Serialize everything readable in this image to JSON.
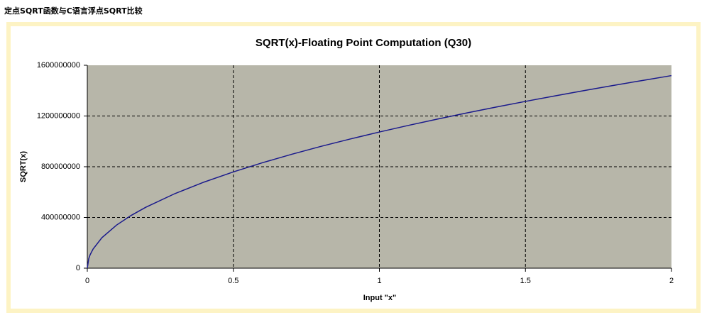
{
  "caption": "定点SQRT函数与C语言浮点SQRT比较",
  "chart_data": {
    "type": "line",
    "title": "SQRT(x)-Floating Point Computation (Q30)",
    "x_label": "Input \"x\"",
    "y_label": "SQRT(x)",
    "x": [
      0,
      0.005,
      0.01,
      0.02,
      0.05,
      0.1,
      0.15,
      0.2,
      0.3,
      0.4,
      0.5,
      0.6,
      0.7,
      0.8,
      0.9,
      1.0,
      1.1,
      1.2,
      1.3,
      1.4,
      1.5,
      1.6,
      1.7,
      1.8,
      1.9,
      2.0
    ],
    "values": [
      0,
      75900000,
      107400000,
      151800000,
      240100000,
      339500000,
      415900000,
      480200000,
      588100000,
      679100000,
      759300000,
      831700000,
      898400000,
      960400000,
      1018600000,
      1073700000,
      1126200000,
      1176200000,
      1224300000,
      1270500000,
      1315100000,
      1358200000,
      1400000000,
      1440600000,
      1480000000,
      1518500000
    ],
    "color": "#1a1a8c",
    "xlim": [
      0,
      2
    ],
    "xticks": [
      0,
      0.5,
      1,
      1.5,
      2
    ],
    "ylim": [
      0,
      1600000000
    ],
    "yticks": [
      0,
      400000000,
      800000000,
      1200000000,
      1600000000
    ],
    "grid": true
  }
}
